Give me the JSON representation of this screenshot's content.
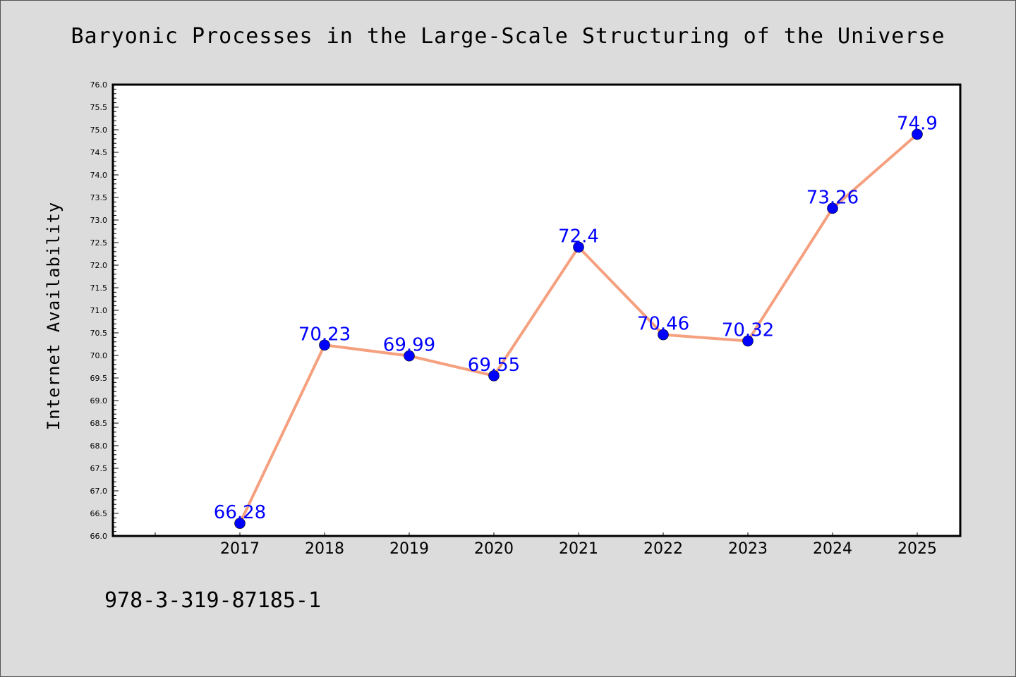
{
  "chart_data": {
    "type": "line",
    "title": "Baryonic Processes in the Large-Scale Structuring of the Universe",
    "xlabel": "",
    "ylabel": "Internet Availability",
    "categories": [
      "2017",
      "2018",
      "2019",
      "2020",
      "2021",
      "2022",
      "2023",
      "2024",
      "2025"
    ],
    "series": [
      {
        "values": [
          66.28,
          70.23,
          69.99,
          69.55,
          72.4,
          70.46,
          70.32,
          73.26,
          74.9
        ],
        "labels": [
          "66.28",
          "70.23",
          "69.99",
          "69.55",
          "72.4",
          "70.46",
          "70.32",
          "73.26",
          "74.9"
        ],
        "line_color": "#f5a07f",
        "marker_color": "#0000ff",
        "label_color": "#0000ff"
      }
    ],
    "ylim": [
      66.0,
      76.0
    ],
    "yticks": [
      "66.0",
      "66.5",
      "67.0",
      "67.5",
      "68.0",
      "68.5",
      "69.0",
      "69.5",
      "70.0",
      "70.5",
      "71.0",
      "71.5",
      "72.0",
      "72.5",
      "73.0",
      "73.5",
      "74.0",
      "74.5",
      "75.0",
      "75.5",
      "76.0"
    ],
    "grid": false,
    "legend": "none"
  },
  "footer": {
    "isbn": "978-3-319-87185-1"
  },
  "colors": {
    "background": "#dcdcdc",
    "plot_background": "#ffffff"
  }
}
